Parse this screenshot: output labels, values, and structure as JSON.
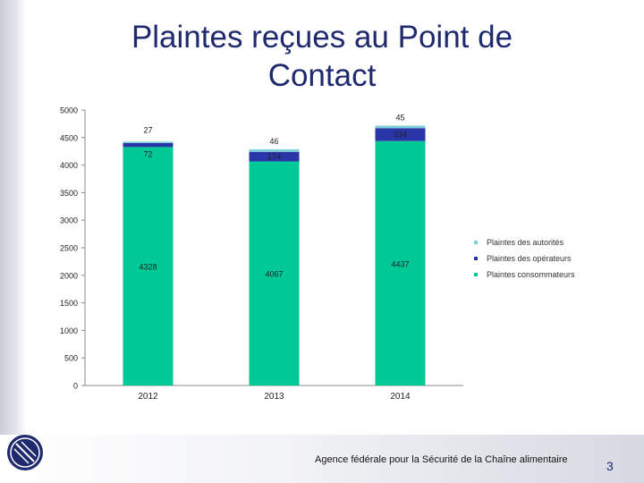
{
  "title": {
    "line1": "Plaintes reçues au Point de",
    "line2": "Contact"
  },
  "chart_data": {
    "type": "bar",
    "stacked": true,
    "categories": [
      "2012",
      "2013",
      "2014"
    ],
    "series": [
      {
        "name": "Plaintes consommateurs",
        "values": [
          4328,
          4067,
          4437
        ],
        "color": "#00c896"
      },
      {
        "name": "Plaintes des opérateurs",
        "values": [
          72,
          174,
          234
        ],
        "color": "#2a35a8"
      },
      {
        "name": "Plaintes des autorités",
        "values": [
          27,
          46,
          45
        ],
        "color": "#7ecfd6"
      }
    ],
    "ylim": [
      0,
      5000
    ],
    "yticks": [
      0,
      500,
      1000,
      1500,
      2000,
      2500,
      3000,
      3500,
      4000,
      4500,
      5000
    ],
    "grid": false,
    "legend_position": "right"
  },
  "legend": {
    "items": [
      {
        "label": "Plaintes des autorités",
        "color": "#7ecfd6"
      },
      {
        "label": "Plaintes des opérateurs",
        "color": "#2a35a8"
      },
      {
        "label": "Plaintes consommateurs",
        "color": "#00c896"
      }
    ]
  },
  "footer": {
    "agency": "Agence fédérale pour la Sécurité de la Chaîne alimentaire",
    "page_number": "3"
  },
  "logo": {
    "icon": "afsca-logo-icon"
  }
}
